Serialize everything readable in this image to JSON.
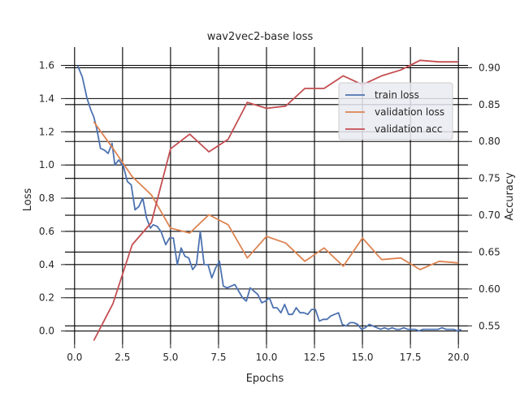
{
  "chart_data": {
    "type": "line",
    "title": "wav2vec2-base loss",
    "xlabel": "Epochs",
    "ylabel_left": "Loss",
    "ylabel_right": "Accuracy",
    "xlim": [
      -0.5,
      20.5
    ],
    "ylim_left": [
      -0.08,
      1.71
    ],
    "ylim_right": [
      0.525,
      0.928
    ],
    "x_ticks": [
      0.0,
      2.5,
      5.0,
      7.5,
      10.0,
      12.5,
      15.0,
      17.5,
      20.0
    ],
    "x_tick_labels": [
      "0.0",
      "2.5",
      "5.0",
      "7.5",
      "10.0",
      "12.5",
      "15.0",
      "17.5",
      "20.0"
    ],
    "y_left_ticks": [
      0.0,
      0.2,
      0.4,
      0.6,
      0.8,
      1.0,
      1.2,
      1.4,
      1.6
    ],
    "y_left_tick_labels": [
      "0.0",
      "0.2",
      "0.4",
      "0.6",
      "0.8",
      "1.0",
      "1.2",
      "1.4",
      "1.6"
    ],
    "y_right_ticks": [
      0.55,
      0.6,
      0.65,
      0.7,
      0.75,
      0.8,
      0.85,
      0.9
    ],
    "y_right_tick_labels": [
      "0.55",
      "0.60",
      "0.65",
      "0.70",
      "0.75",
      "0.80",
      "0.85",
      "0.90"
    ],
    "grid": true,
    "legend_position": "upper-right",
    "series": [
      {
        "name": "train loss",
        "axis": "left",
        "color": "#4c72b0",
        "x": [
          0.15,
          0.4,
          0.65,
          0.85,
          1.0,
          1.15,
          1.35,
          1.55,
          1.75,
          1.95,
          2.1,
          2.3,
          2.55,
          2.75,
          2.95,
          3.15,
          3.35,
          3.55,
          3.75,
          3.95,
          4.1,
          4.3,
          4.5,
          4.75,
          4.95,
          5.15,
          5.35,
          5.55,
          5.75,
          5.95,
          6.15,
          6.35,
          6.55,
          6.75,
          6.95,
          7.15,
          7.35,
          7.55,
          7.75,
          7.95,
          8.15,
          8.35,
          8.55,
          8.75,
          8.95,
          9.15,
          9.35,
          9.55,
          9.75,
          9.95,
          10.15,
          10.35,
          10.55,
          10.75,
          10.95,
          11.15,
          11.35,
          11.55,
          11.75,
          11.95,
          12.15,
          12.35,
          12.55,
          12.75,
          12.95,
          13.15,
          13.35,
          13.55,
          13.75,
          13.95,
          14.15,
          14.35,
          14.55,
          14.75,
          14.95,
          15.15,
          15.35,
          15.55,
          15.75,
          15.95,
          16.15,
          16.35,
          16.55,
          16.75,
          16.95,
          17.15,
          17.35,
          17.55,
          17.75,
          17.95,
          18.15,
          18.35,
          18.55,
          18.75,
          18.95,
          19.15,
          19.35,
          19.55,
          19.75,
          19.95,
          20.15
        ],
        "y": [
          1.6,
          1.53,
          1.4,
          1.33,
          1.29,
          1.22,
          1.1,
          1.09,
          1.07,
          1.13,
          1.0,
          1.03,
          0.99,
          0.9,
          0.88,
          0.73,
          0.75,
          0.8,
          0.68,
          0.62,
          0.64,
          0.63,
          0.6,
          0.52,
          0.56,
          0.56,
          0.4,
          0.5,
          0.45,
          0.44,
          0.37,
          0.4,
          0.6,
          0.4,
          0.4,
          0.32,
          0.38,
          0.42,
          0.27,
          0.26,
          0.27,
          0.28,
          0.24,
          0.2,
          0.18,
          0.26,
          0.24,
          0.22,
          0.17,
          0.18,
          0.2,
          0.14,
          0.14,
          0.11,
          0.16,
          0.1,
          0.1,
          0.14,
          0.11,
          0.11,
          0.1,
          0.13,
          0.13,
          0.06,
          0.07,
          0.07,
          0.09,
          0.1,
          0.11,
          0.04,
          0.03,
          0.05,
          0.05,
          0.04,
          0.01,
          0.02,
          0.04,
          0.03,
          0.02,
          0.01,
          0.02,
          0.01,
          0.02,
          0.01,
          0.01,
          0.02,
          0.01,
          0.01,
          0.01,
          0.0,
          0.01,
          0.01,
          0.01,
          0.01,
          0.01,
          0.02,
          0.01,
          0.01,
          0.01,
          0.0,
          0.01
        ]
      },
      {
        "name": "validation loss",
        "axis": "left",
        "color": "#dd8452",
        "x": [
          1,
          2,
          3,
          4,
          5,
          6,
          7,
          8,
          9,
          10,
          11,
          12,
          13,
          14,
          15,
          16,
          17,
          18,
          19,
          20
        ],
        "y": [
          1.26,
          1.1,
          0.93,
          0.82,
          0.62,
          0.59,
          0.7,
          0.64,
          0.44,
          0.57,
          0.53,
          0.42,
          0.5,
          0.39,
          0.56,
          0.43,
          0.44,
          0.37,
          0.42,
          0.41
        ]
      },
      {
        "name": "validation acc",
        "axis": "right",
        "color": "#c44e52",
        "x": [
          1,
          2,
          3,
          4,
          5,
          6,
          7,
          8,
          9,
          10,
          11,
          12,
          13,
          14,
          15,
          16,
          17,
          18,
          19,
          20
        ],
        "y": [
          0.53,
          0.58,
          0.66,
          0.69,
          0.79,
          0.81,
          0.786,
          0.803,
          0.853,
          0.845,
          0.848,
          0.872,
          0.872,
          0.889,
          0.877,
          0.889,
          0.897,
          0.91,
          0.908,
          0.908
        ]
      }
    ]
  }
}
